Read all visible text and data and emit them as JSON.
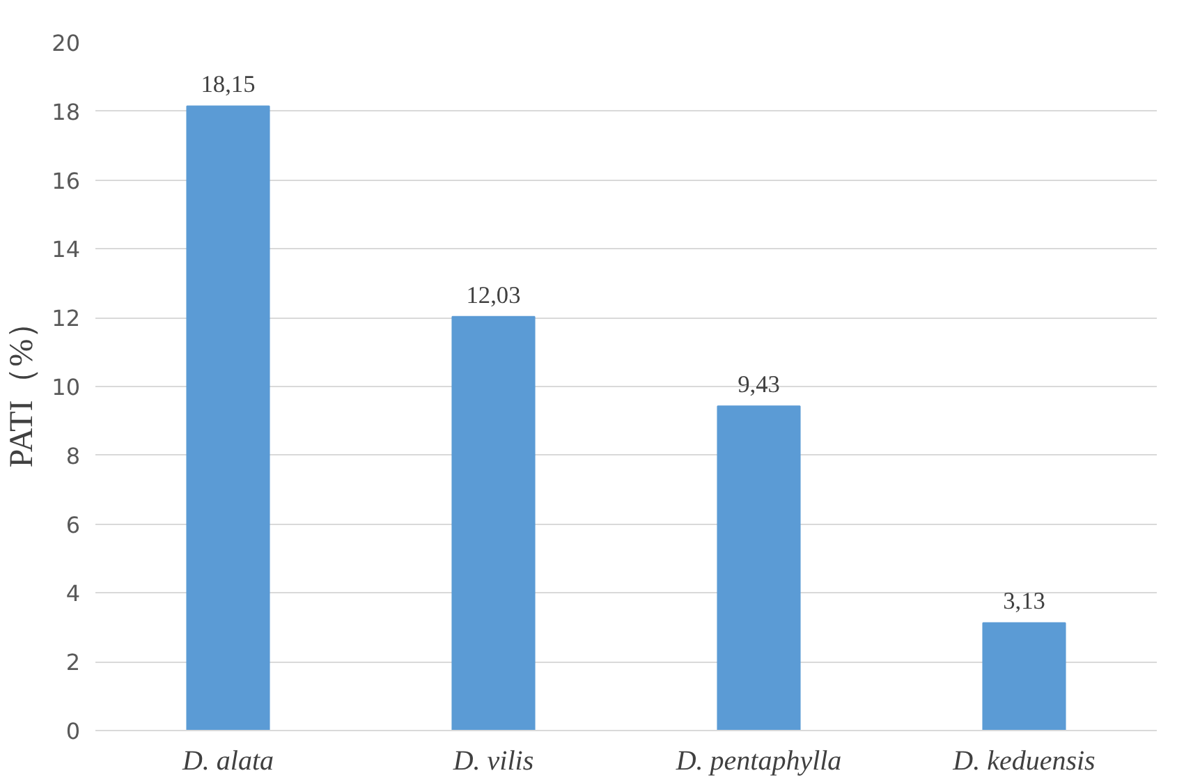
{
  "chart_data": {
    "type": "bar",
    "ylabel": "PATI（%）",
    "categories": [
      "D. alata",
      "D. vilis",
      "D. pentaphylla",
      "D. keduensis"
    ],
    "values": [
      18.15,
      12.03,
      9.43,
      3.13
    ],
    "value_labels": [
      "18,15",
      "12,03",
      "9,43",
      "3,13"
    ],
    "color": "#5b9bd5",
    "ylim": [
      0,
      20
    ],
    "yticks": [
      0,
      2,
      4,
      6,
      8,
      10,
      12,
      14,
      16,
      18,
      20
    ],
    "grid": "y"
  }
}
